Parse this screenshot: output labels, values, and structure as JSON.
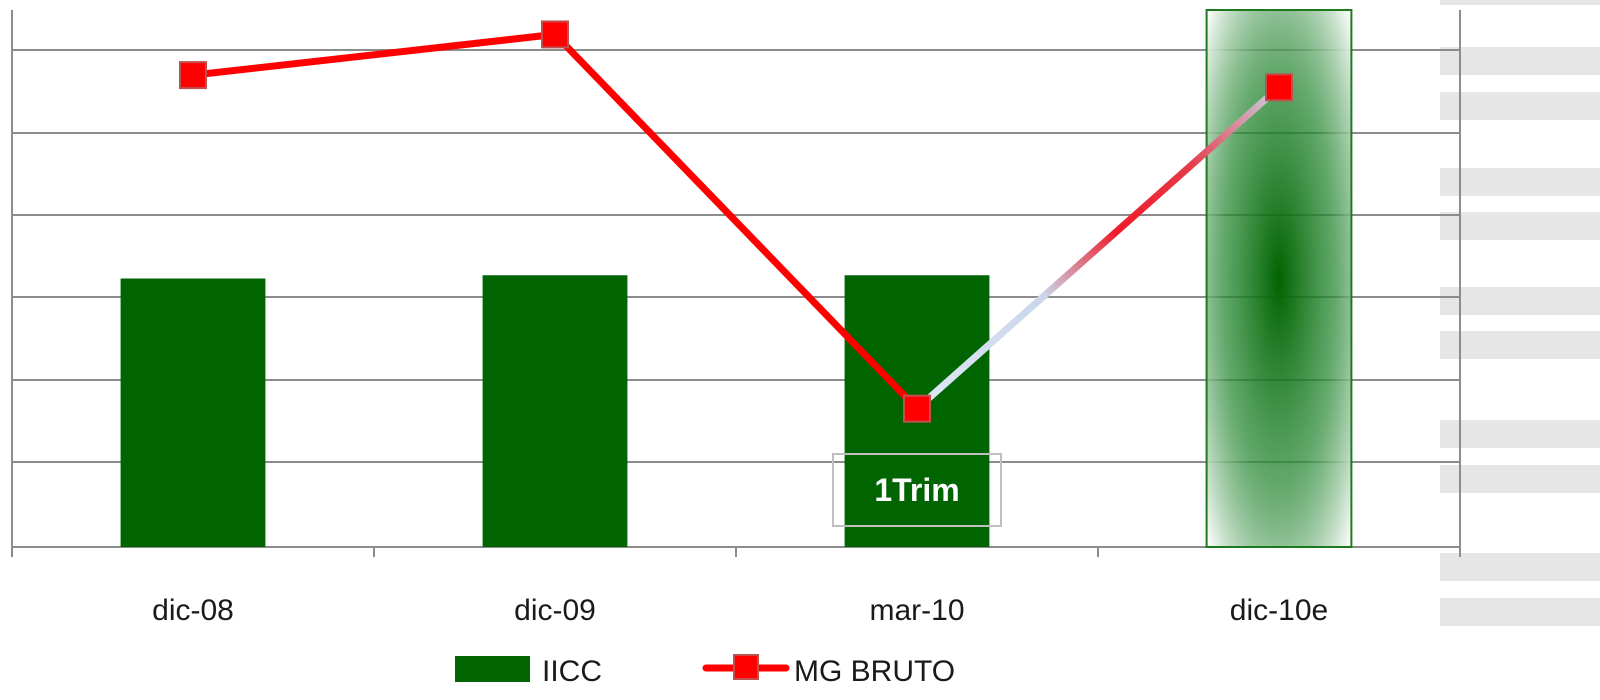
{
  "chart_data": {
    "type": "bar",
    "categories": [
      "dic-08",
      "dic-09",
      "mar-10",
      "dic-10e"
    ],
    "series": [
      {
        "name": "IICC",
        "type": "bar",
        "axis": "left",
        "values": [
          3.3,
          3.34,
          3.34,
          6.6
        ],
        "color": "#006400",
        "style": [
          "solid",
          "solid",
          "solid",
          "gradient-estimate"
        ]
      },
      {
        "name": "MG BRUTO",
        "type": "line",
        "axis": "right",
        "values": [
          5.8,
          6.3,
          1.7,
          5.65
        ],
        "color": "#ff0000",
        "marker": "square"
      }
    ],
    "ylim": [
      0,
      6.6
    ],
    "y2lim": [
      0,
      6.6
    ],
    "grid": true,
    "legend": "bottom",
    "annotations": [
      {
        "text": "1Trim",
        "category": "mar-10"
      }
    ]
  }
}
